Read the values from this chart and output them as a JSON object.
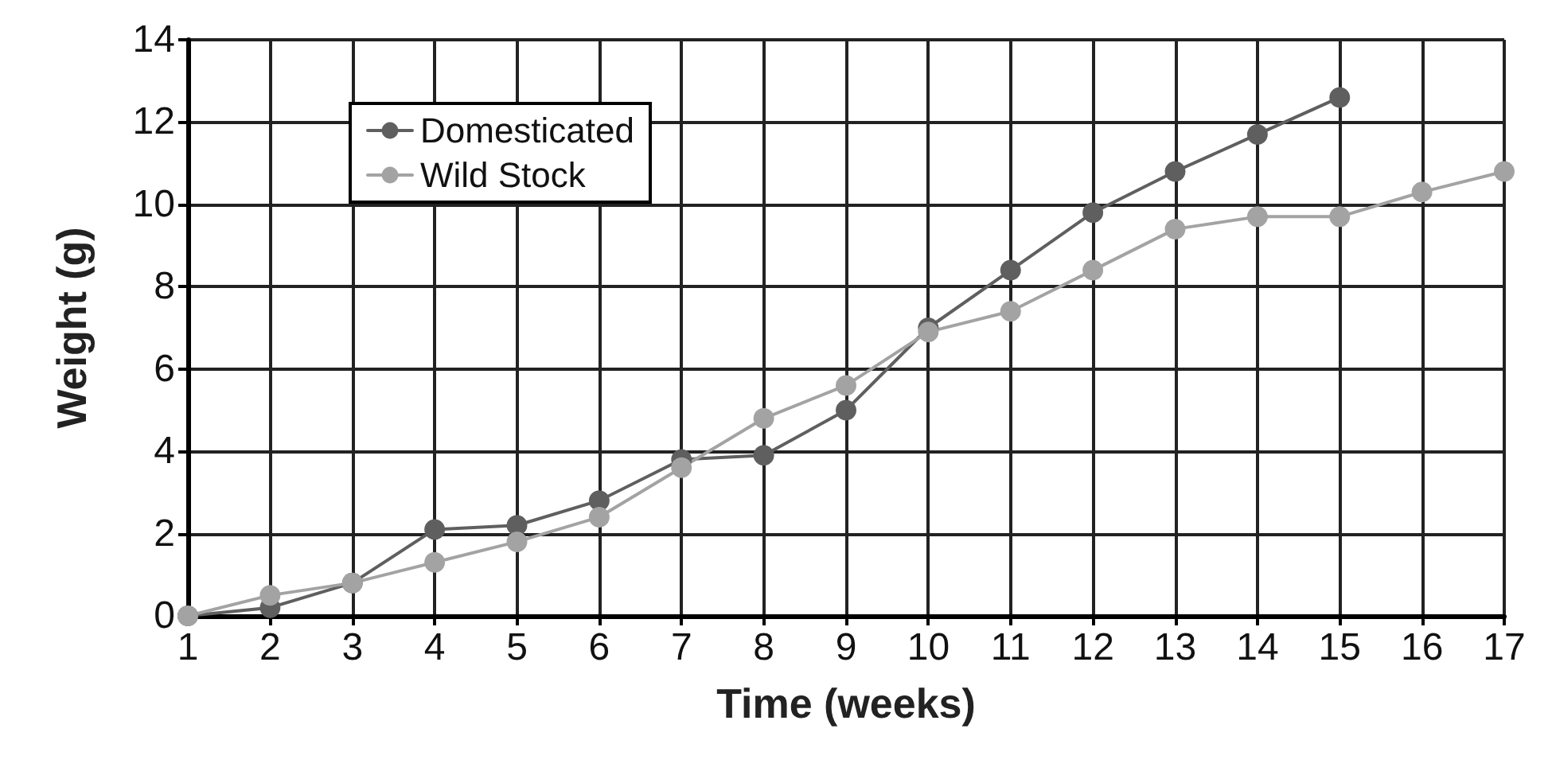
{
  "chart_data": {
    "type": "line",
    "xlabel": "Time (weeks)",
    "ylabel": "Weight (g)",
    "xlim": [
      1,
      17
    ],
    "xticks": [
      1,
      2,
      3,
      4,
      5,
      6,
      7,
      8,
      9,
      10,
      11,
      12,
      13,
      14,
      15,
      16,
      17
    ],
    "ylim": [
      0,
      14
    ],
    "yticks": [
      0,
      2,
      4,
      6,
      8,
      10,
      12,
      14
    ],
    "series": [
      {
        "name": "Domesticated",
        "color": "#5f5f5f",
        "x": [
          1,
          2,
          3,
          4,
          5,
          6,
          7,
          8,
          9,
          10,
          11,
          12,
          13,
          14,
          15
        ],
        "values": [
          0,
          0.2,
          0.8,
          2.1,
          2.2,
          2.8,
          3.8,
          3.9,
          5.0,
          7.0,
          8.4,
          9.8,
          10.8,
          11.7,
          12.6
        ]
      },
      {
        "name": "Wild Stock",
        "color": "#a3a3a3",
        "x": [
          1,
          2,
          3,
          4,
          5,
          6,
          7,
          8,
          9,
          10,
          11,
          12,
          13,
          14,
          15,
          16,
          17
        ],
        "values": [
          0,
          0.5,
          0.8,
          1.3,
          1.8,
          2.4,
          3.6,
          4.8,
          5.6,
          6.9,
          7.4,
          8.4,
          9.4,
          9.7,
          9.7,
          10.3,
          10.8
        ]
      }
    ],
    "grid": true,
    "legend": "top left",
    "marker": "circle",
    "line_style": "solid"
  }
}
